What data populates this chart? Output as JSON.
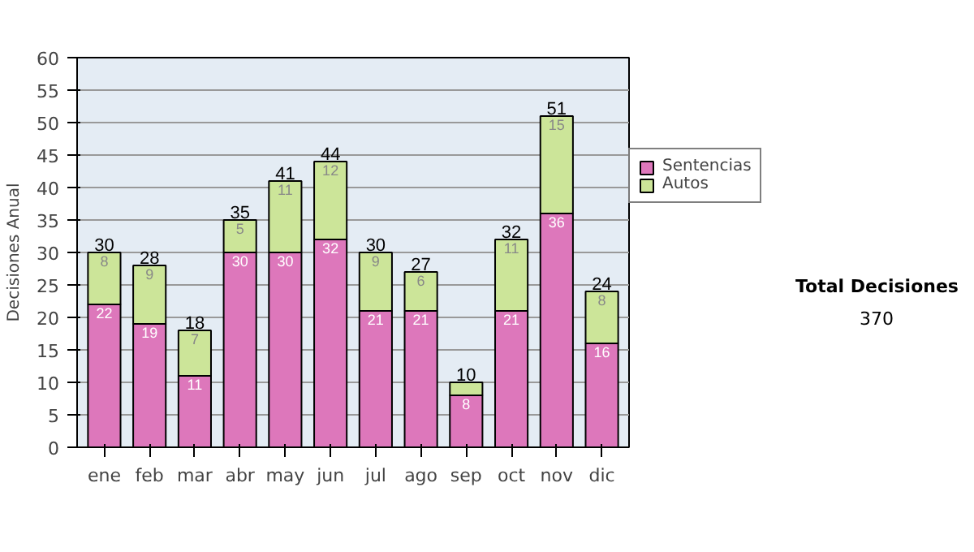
{
  "chart_data": {
    "type": "bar",
    "stacked": true,
    "ylabel": "Decisiones Anual",
    "categories": [
      "ene",
      "feb",
      "mar",
      "abr",
      "may",
      "jun",
      "jul",
      "ago",
      "sep",
      "oct",
      "nov",
      "dic"
    ],
    "series": [
      {
        "name": "Sentencias",
        "color": "#dd77bb",
        "values": [
          22,
          19,
          11,
          30,
          30,
          32,
          21,
          21,
          8,
          21,
          36,
          16
        ],
        "value_labels": [
          "22",
          "19",
          "11",
          "30",
          "30",
          "32",
          "21",
          "21",
          "8",
          "21",
          "36",
          "16"
        ]
      },
      {
        "name": "Autos",
        "color": "#cce599",
        "values": [
          8,
          9,
          7,
          5,
          11,
          12,
          9,
          6,
          2,
          11,
          15,
          8
        ],
        "value_labels": [
          "8",
          "9",
          "7",
          "5",
          "11",
          "12",
          "9",
          "6",
          null,
          "11",
          "15",
          "8"
        ]
      }
    ],
    "totals": [
      "30",
      "28",
      "18",
      "35",
      "41",
      "44",
      "30",
      "27",
      "10",
      "32",
      "51",
      "24"
    ],
    "ylim": [
      0,
      60
    ],
    "yticks": [
      0,
      5,
      10,
      15,
      20,
      25,
      30,
      35,
      40,
      45,
      50,
      55,
      60
    ],
    "grid": "y",
    "legend": "right",
    "annotations": [
      "Total Decisiones",
      "370"
    ]
  }
}
